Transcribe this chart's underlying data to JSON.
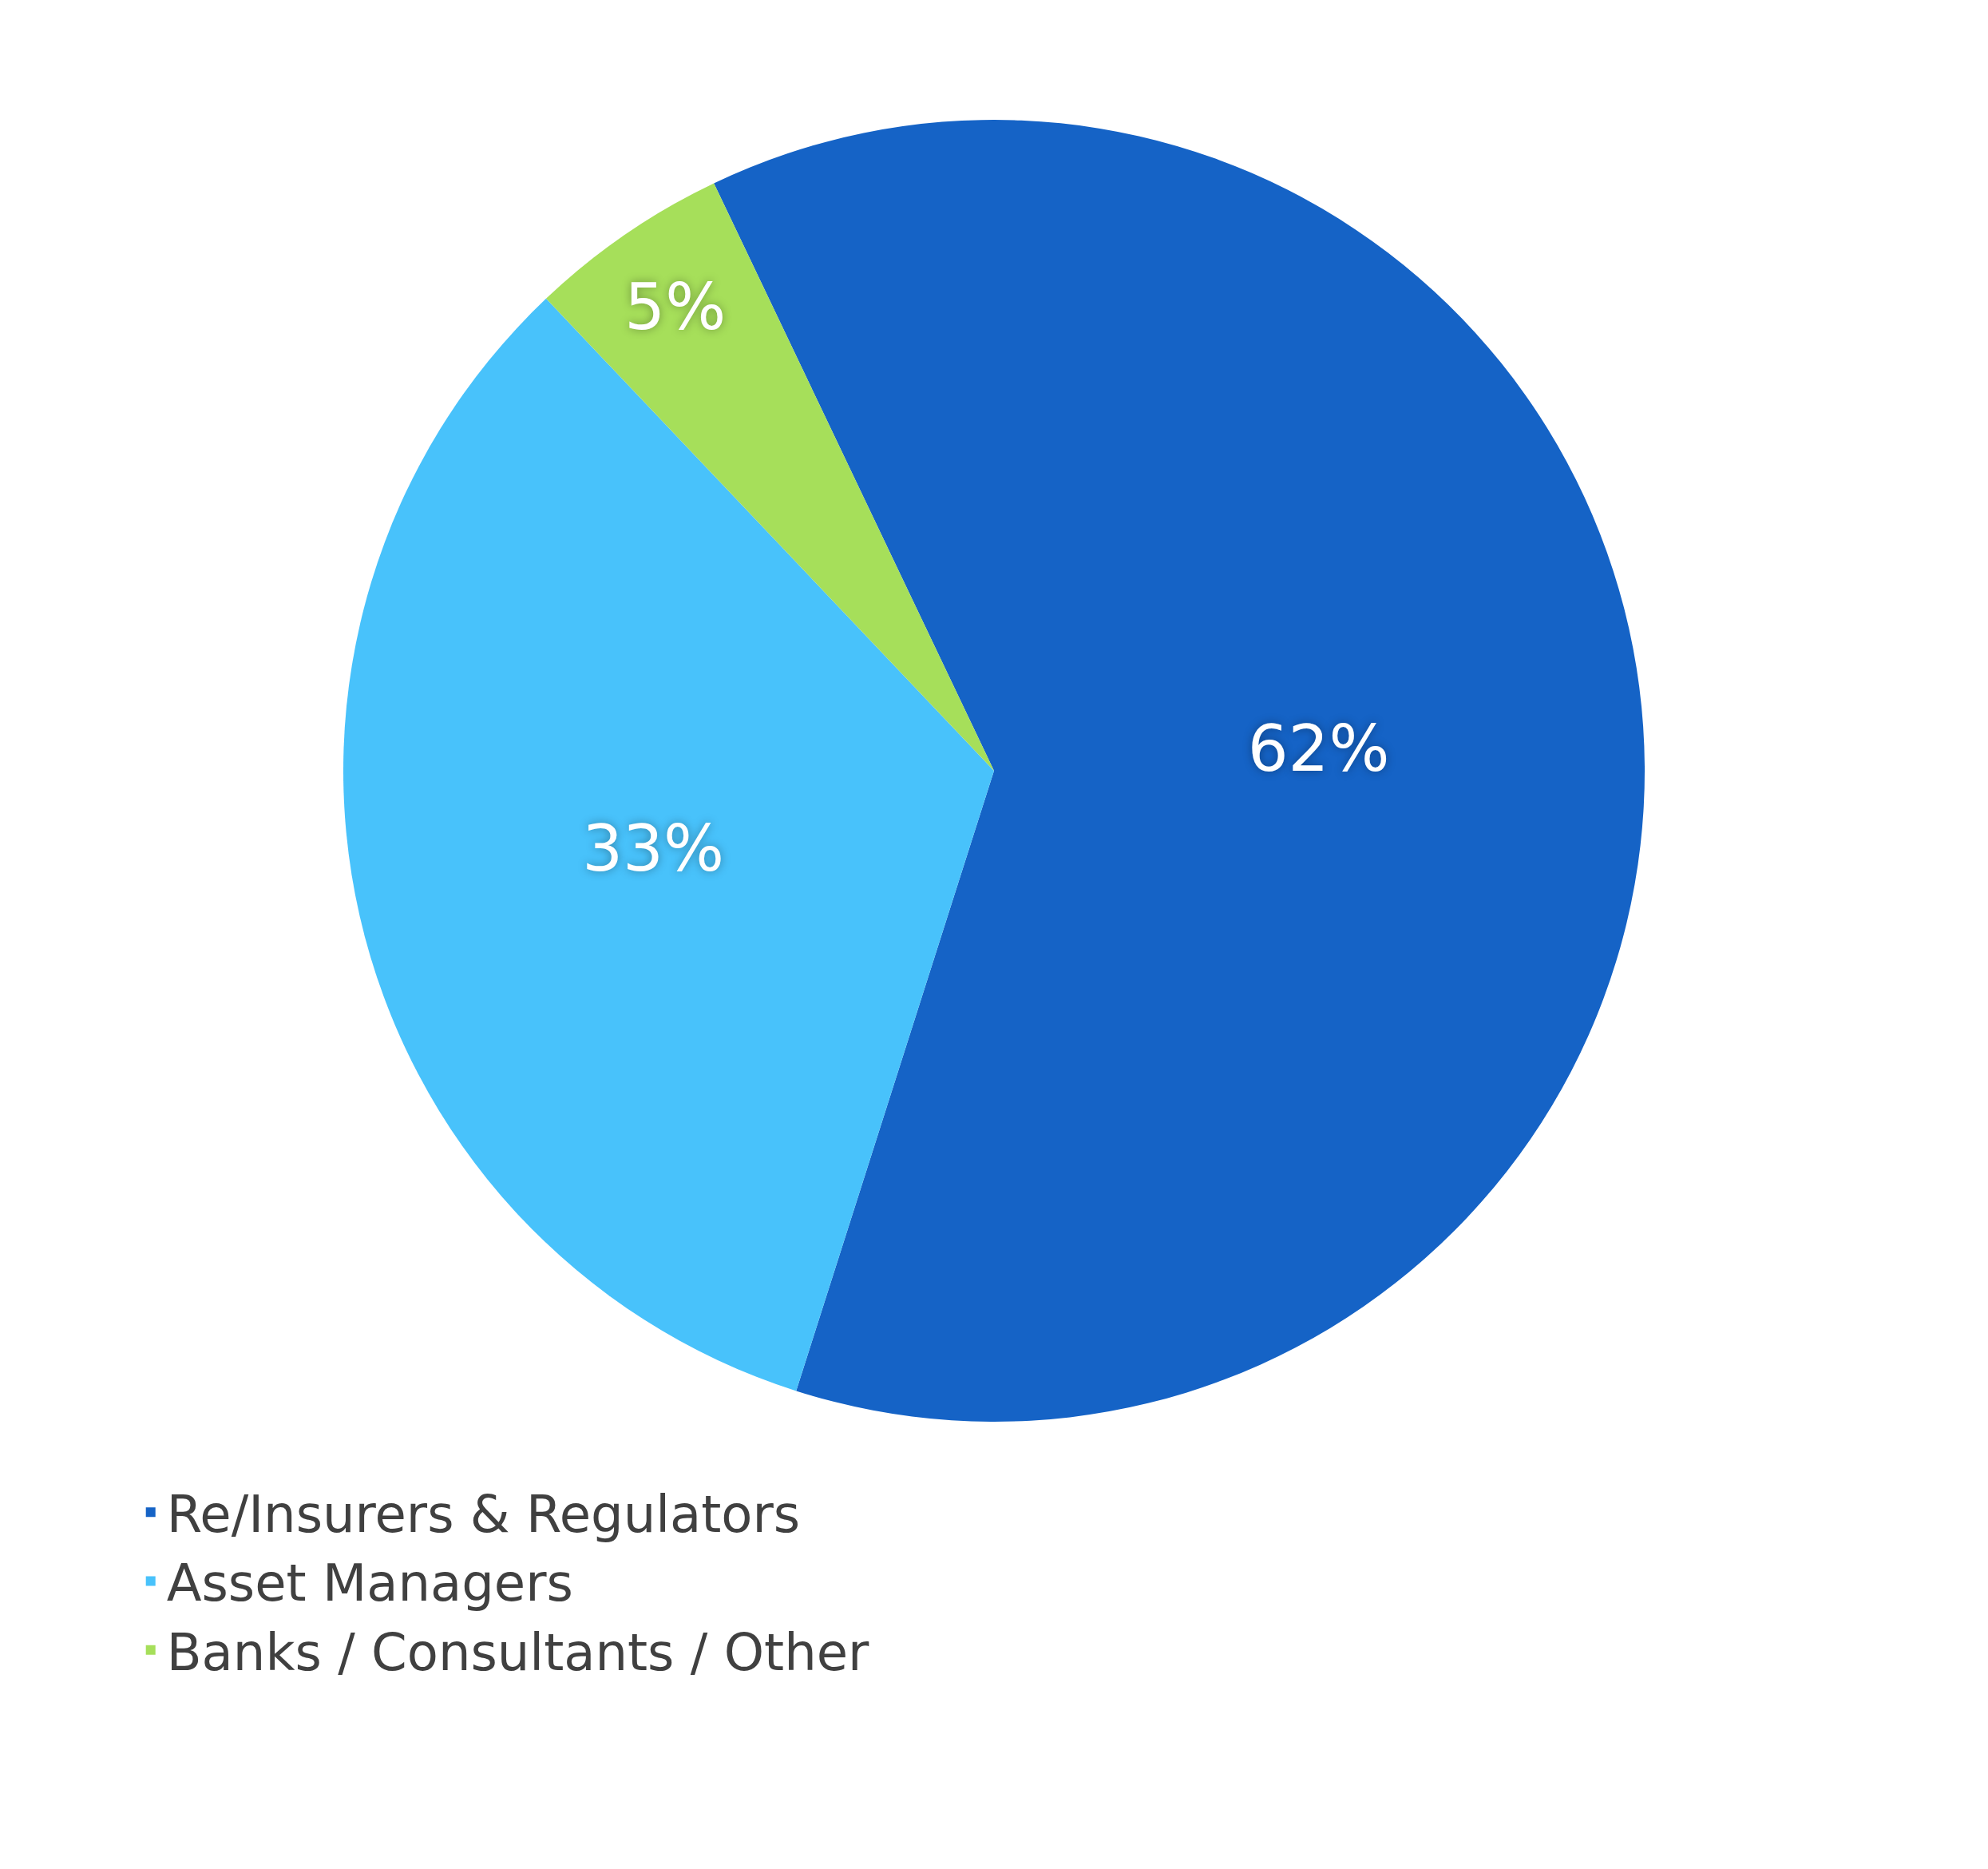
{
  "chart_data": {
    "type": "pie",
    "categories": [
      "Re/Insurers & Regulators",
      "Asset Managers",
      "Banks / Consultants / Other"
    ],
    "values": [
      62,
      33,
      5
    ],
    "colors": [
      "#1563c6",
      "#48c2fb",
      "#a6df5a"
    ],
    "value_labels": [
      "62%",
      "33%",
      "5%"
    ],
    "legend": "bottom left"
  }
}
